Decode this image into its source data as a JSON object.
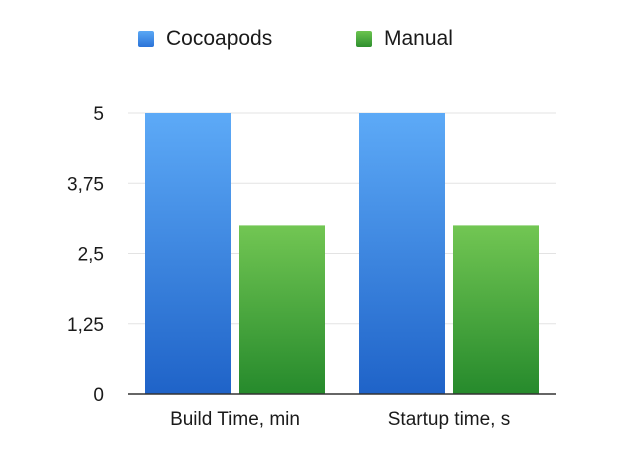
{
  "chart_data": {
    "type": "bar",
    "categories": [
      "Build Time, min",
      "Startup time, s"
    ],
    "series": [
      {
        "name": "Cocoapods",
        "values": [
          5,
          5
        ],
        "color": "#3f8fe6"
      },
      {
        "name": "Manual",
        "values": [
          3,
          3
        ],
        "color": "#3faa3f"
      }
    ],
    "yticks": [
      "0",
      "1,25",
      "2,5",
      "3,75",
      "5"
    ],
    "ytick_values": [
      0,
      1.25,
      2.5,
      3.75,
      5
    ],
    "ylim": [
      0,
      5
    ],
    "grid": true,
    "legend_position": "top",
    "title": "",
    "xlabel": "",
    "ylabel": ""
  }
}
